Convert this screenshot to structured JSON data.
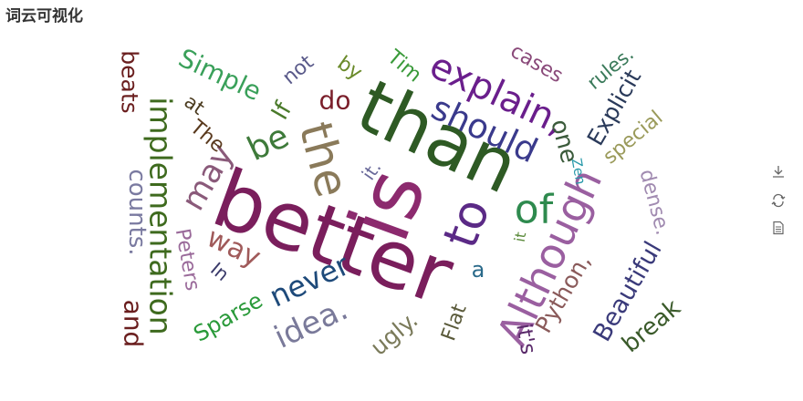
{
  "title": "词云可视化",
  "toolbox": {
    "save_icon": "save-as-image-icon",
    "restore_icon": "restore-icon",
    "data_view_icon": "data-view-icon",
    "icon_color": "#666666"
  },
  "chart_data": {
    "type": "wordcloud",
    "words": [
      {
        "text": "better",
        "color": "#7a1e5c"
      },
      {
        "text": "is",
        "color": "#8c2a6e"
      },
      {
        "text": "than",
        "color": "#2e5a24"
      },
      {
        "text": "the",
        "color": "#8a7a5a"
      },
      {
        "text": "to",
        "color": "#5b2a86"
      },
      {
        "text": "Although",
        "color": "#9a5fa0"
      },
      {
        "text": "of",
        "color": "#2e8a4e"
      },
      {
        "text": "implementation",
        "color": "#3e6a1e"
      },
      {
        "text": "explain,",
        "color": "#6a1e8c"
      },
      {
        "text": "should",
        "color": "#3a3a8c"
      },
      {
        "text": "be",
        "color": "#3e7a3a"
      },
      {
        "text": "may",
        "color": "#8a5a7a"
      },
      {
        "text": "idea.",
        "color": "#7a7a9a"
      },
      {
        "text": "never",
        "color": "#1e4a7a"
      },
      {
        "text": "way",
        "color": "#a05a5a"
      },
      {
        "text": "Simple",
        "color": "#3aa05a"
      },
      {
        "text": "If",
        "color": "#4a7a2a"
      },
      {
        "text": "do",
        "color": "#7a1e2a"
      },
      {
        "text": "one",
        "color": "#3a5a3a"
      },
      {
        "text": "Beautiful",
        "color": "#3a3a7a"
      },
      {
        "text": "Python,",
        "color": "#8a5a5a"
      },
      {
        "text": "break",
        "color": "#3a5a2a"
      },
      {
        "text": "Explicit",
        "color": "#2a3a5a"
      },
      {
        "text": "special",
        "color": "#9a9a5a"
      },
      {
        "text": "beats",
        "color": "#6a1e1e"
      },
      {
        "text": "counts.",
        "color": "#7a7aa0"
      },
      {
        "text": "and",
        "color": "#6a1e1e"
      },
      {
        "text": "Peters",
        "color": "#9a6a9a"
      },
      {
        "text": "Sparse",
        "color": "#2a9a3a"
      },
      {
        "text": "ugly.",
        "color": "#7a7a5a"
      },
      {
        "text": "Flat",
        "color": "#5a5a3a"
      },
      {
        "text": "it's",
        "color": "#5a2a6a"
      },
      {
        "text": "cases",
        "color": "#8a4a7a"
      },
      {
        "text": "rules.",
        "color": "#3a7a5a"
      },
      {
        "text": "dense.",
        "color": "#a08ab0"
      },
      {
        "text": "Tim",
        "color": "#3a9a3a"
      },
      {
        "text": "by",
        "color": "#6a8a2a"
      },
      {
        "text": "not",
        "color": "#5a5a8a"
      },
      {
        "text": "The",
        "color": "#5a3a1e"
      },
      {
        "text": "at",
        "color": "#4a3a1e"
      },
      {
        "text": "a",
        "color": "#2a6a8a"
      },
      {
        "text": "In",
        "color": "#3a3a6a"
      },
      {
        "text": "it.",
        "color": "#6a6a9a"
      },
      {
        "text": "it",
        "color": "#5a8a3a"
      },
      {
        "text": "Zen",
        "color": "#2a9aaa"
      }
    ]
  }
}
